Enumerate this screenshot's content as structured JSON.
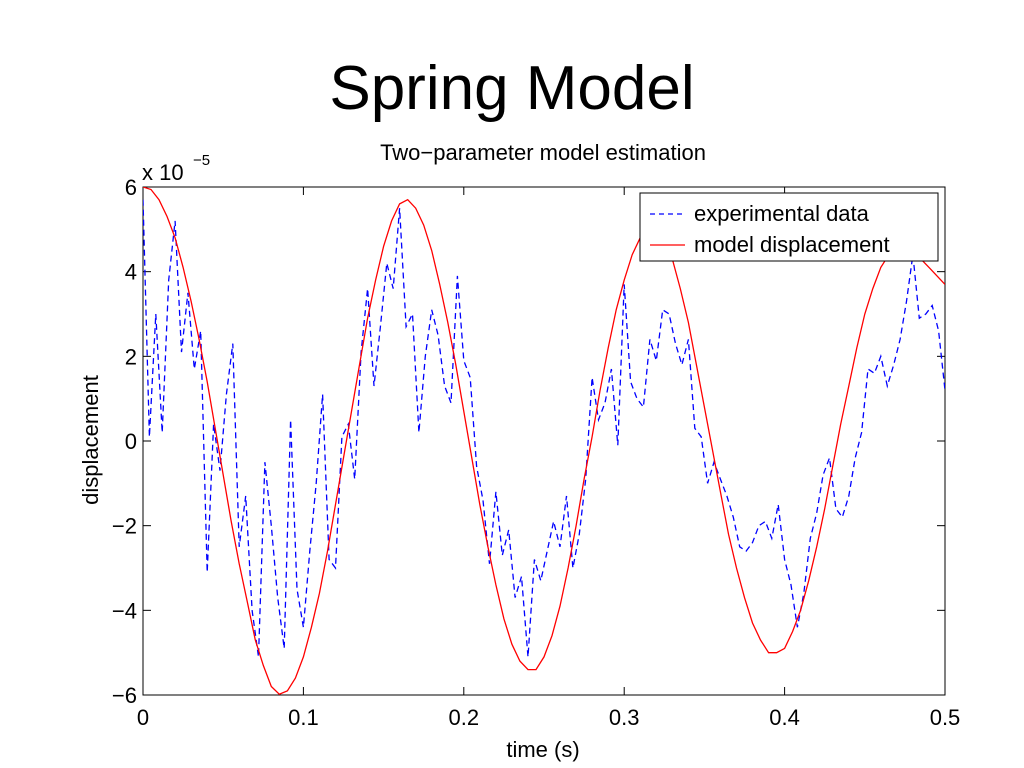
{
  "slide": {
    "title": "Spring Model"
  },
  "chart_data": {
    "type": "line",
    "title": "Two−parameter model estimation",
    "xlabel": "time (s)",
    "ylabel": "displacement",
    "y_multiplier_label": "x 10",
    "y_multiplier_exponent": "−5",
    "xlim": [
      0,
      0.5
    ],
    "ylim": [
      -6,
      6
    ],
    "x_ticks": [
      0,
      0.1,
      0.2,
      0.3,
      0.4,
      0.5
    ],
    "x_tick_labels": [
      "0",
      "0.1",
      "0.2",
      "0.3",
      "0.4",
      "0.5"
    ],
    "y_ticks": [
      -6,
      -4,
      -2,
      0,
      2,
      4,
      6
    ],
    "y_tick_labels": [
      "−6",
      "−4",
      "−2",
      "0",
      "2",
      "4",
      "6"
    ],
    "grid": false,
    "legend_position": "top-right",
    "series": [
      {
        "name": "experimental data",
        "color": "#0000ff",
        "style": "dashed",
        "x": [
          0,
          0.004,
          0.008,
          0.012,
          0.016,
          0.02,
          0.024,
          0.028,
          0.032,
          0.036,
          0.04,
          0.044,
          0.048,
          0.052,
          0.056,
          0.06,
          0.064,
          0.068,
          0.072,
          0.076,
          0.08,
          0.084,
          0.088,
          0.092,
          0.096,
          0.1,
          0.104,
          0.108,
          0.112,
          0.116,
          0.12,
          0.124,
          0.128,
          0.132,
          0.136,
          0.14,
          0.144,
          0.148,
          0.152,
          0.156,
          0.16,
          0.164,
          0.168,
          0.172,
          0.176,
          0.18,
          0.184,
          0.188,
          0.192,
          0.196,
          0.2,
          0.204,
          0.208,
          0.212,
          0.216,
          0.22,
          0.224,
          0.228,
          0.232,
          0.236,
          0.24,
          0.244,
          0.248,
          0.252,
          0.256,
          0.26,
          0.264,
          0.268,
          0.272,
          0.276,
          0.28,
          0.284,
          0.288,
          0.292,
          0.296,
          0.3,
          0.304,
          0.308,
          0.312,
          0.316,
          0.32,
          0.324,
          0.328,
          0.332,
          0.336,
          0.34,
          0.344,
          0.348,
          0.352,
          0.356,
          0.36,
          0.364,
          0.368,
          0.372,
          0.376,
          0.38,
          0.384,
          0.388,
          0.392,
          0.396,
          0.4,
          0.404,
          0.408,
          0.412,
          0.416,
          0.42,
          0.424,
          0.428,
          0.432,
          0.436,
          0.44,
          0.444,
          0.448,
          0.452,
          0.456,
          0.46,
          0.464,
          0.468,
          0.472,
          0.476,
          0.48,
          0.484,
          0.488,
          0.492,
          0.496,
          0.5
        ],
        "y": [
          5.7,
          0.1,
          3.0,
          0.2,
          3.8,
          5.2,
          2.1,
          3.5,
          1.7,
          2.6,
          -3.1,
          0.4,
          -0.7,
          1.1,
          2.3,
          -2.5,
          -1.3,
          -4.0,
          -5.1,
          -0.5,
          -2.0,
          -3.7,
          -4.9,
          0.5,
          -3.5,
          -4.4,
          -2.6,
          -1.0,
          1.1,
          -2.8,
          -3.0,
          0.1,
          0.4,
          -0.9,
          2.1,
          3.6,
          1.3,
          2.7,
          4.2,
          3.6,
          5.5,
          2.7,
          3.0,
          0.2,
          2.0,
          3.1,
          2.5,
          1.3,
          0.9,
          3.9,
          1.9,
          1.5,
          -0.6,
          -1.4,
          -2.9,
          -1.2,
          -2.7,
          -2.1,
          -3.7,
          -3.2,
          -5.1,
          -2.8,
          -3.3,
          -2.6,
          -1.9,
          -2.5,
          -1.3,
          -3.0,
          -2.2,
          -0.9,
          1.5,
          0.5,
          0.9,
          1.7,
          -0.1,
          3.7,
          1.4,
          1.0,
          0.8,
          2.4,
          1.9,
          3.1,
          3.0,
          2.3,
          1.8,
          2.4,
          0.3,
          0.1,
          -1.0,
          -0.5,
          -0.9,
          -1.3,
          -1.8,
          -2.5,
          -2.6,
          -2.4,
          -2.0,
          -1.9,
          -2.3,
          -1.5,
          -2.8,
          -3.4,
          -4.4,
          -3.6,
          -2.3,
          -1.7,
          -0.8,
          -0.4,
          -1.6,
          -1.8,
          -1.3,
          -0.4,
          0.2,
          1.7,
          1.6,
          2.0,
          1.3,
          1.8,
          2.4,
          3.3,
          4.4,
          2.9,
          3.0,
          3.2,
          2.6,
          1.2
        ],
        "y_description": "values in units of 1e-5"
      },
      {
        "name": "model displacement",
        "color": "#ff0000",
        "style": "solid",
        "x": [
          0,
          0.005,
          0.01,
          0.015,
          0.02,
          0.025,
          0.03,
          0.035,
          0.04,
          0.045,
          0.05,
          0.055,
          0.06,
          0.065,
          0.07,
          0.075,
          0.08,
          0.085,
          0.09,
          0.095,
          0.1,
          0.105,
          0.11,
          0.115,
          0.12,
          0.125,
          0.13,
          0.135,
          0.14,
          0.145,
          0.15,
          0.155,
          0.16,
          0.165,
          0.17,
          0.175,
          0.18,
          0.185,
          0.19,
          0.195,
          0.2,
          0.205,
          0.21,
          0.215,
          0.22,
          0.225,
          0.23,
          0.235,
          0.24,
          0.245,
          0.25,
          0.255,
          0.26,
          0.265,
          0.27,
          0.275,
          0.28,
          0.285,
          0.29,
          0.295,
          0.3,
          0.305,
          0.31,
          0.315,
          0.32,
          0.325,
          0.33,
          0.335,
          0.34,
          0.345,
          0.35,
          0.355,
          0.36,
          0.365,
          0.37,
          0.375,
          0.38,
          0.385,
          0.39,
          0.395,
          0.4,
          0.405,
          0.41,
          0.415,
          0.42,
          0.425,
          0.43,
          0.435,
          0.44,
          0.445,
          0.45,
          0.455,
          0.46,
          0.465,
          0.47,
          0.475,
          0.48,
          0.485,
          0.49,
          0.495,
          0.5
        ],
        "y": [
          6.0,
          5.94,
          5.7,
          5.3,
          4.8,
          4.1,
          3.3,
          2.4,
          1.4,
          0.3,
          -0.8,
          -1.9,
          -2.9,
          -3.8,
          -4.7,
          -5.3,
          -5.8,
          -5.98,
          -5.9,
          -5.6,
          -5.1,
          -4.4,
          -3.6,
          -2.6,
          -1.5,
          -0.4,
          0.7,
          1.8,
          2.9,
          3.8,
          4.6,
          5.2,
          5.6,
          5.7,
          5.5,
          5.1,
          4.5,
          3.7,
          2.8,
          1.8,
          0.7,
          -0.4,
          -1.5,
          -2.5,
          -3.4,
          -4.2,
          -4.8,
          -5.2,
          -5.4,
          -5.4,
          -5.1,
          -4.6,
          -3.9,
          -3.0,
          -2.0,
          -0.9,
          0.1,
          1.2,
          2.2,
          3.1,
          3.8,
          4.4,
          4.8,
          5.0,
          5.0,
          4.7,
          4.3,
          3.6,
          2.8,
          1.8,
          0.8,
          -0.2,
          -1.2,
          -2.2,
          -3.0,
          -3.7,
          -4.3,
          -4.7,
          -5.0,
          -5.0,
          -4.9,
          -4.5,
          -4.0,
          -3.3,
          -2.5,
          -1.6,
          -0.6,
          0.4,
          1.3,
          2.2,
          3.0,
          3.6,
          4.1,
          4.4,
          4.5,
          4.5,
          4.4,
          4.3,
          4.1,
          3.9,
          3.7
        ],
        "y_description": "values in units of 1e-5"
      }
    ]
  }
}
